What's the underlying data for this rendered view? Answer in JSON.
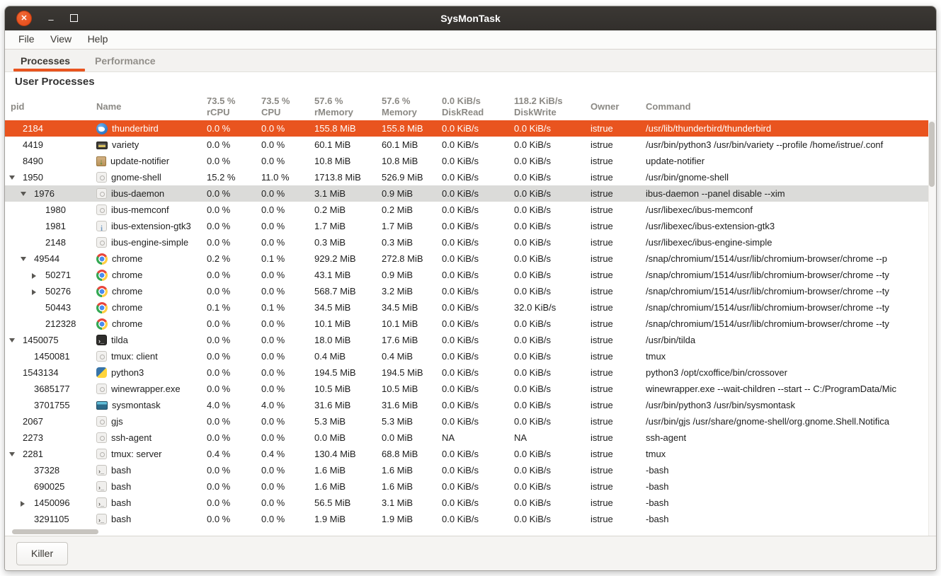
{
  "window": {
    "title": "SysMonTask"
  },
  "window_controls": {
    "close": "✕",
    "minimize": "–",
    "maximize": "□"
  },
  "menu": {
    "items": [
      "File",
      "View",
      "Help"
    ]
  },
  "tabs": [
    {
      "label": "Processes",
      "active": true
    },
    {
      "label": "Performance",
      "active": false
    }
  ],
  "section_title": "User Processes",
  "footer": {
    "killer_label": "Killer"
  },
  "colors": {
    "accent": "#E9541F",
    "selected_row_bg": "#E9541F",
    "highlighted_row_bg": "#dbdbd9",
    "titlebar_bg": "#353230",
    "header_text": "#8b8984"
  },
  "table": {
    "columns": [
      {
        "id": "pid",
        "label1": "pid",
        "label2": ""
      },
      {
        "id": "name",
        "label1": "Name",
        "label2": ""
      },
      {
        "id": "rcpu",
        "label1": "73.5 %",
        "label2": "rCPU"
      },
      {
        "id": "cpu",
        "label1": "73.5 %",
        "label2": "CPU"
      },
      {
        "id": "rmem",
        "label1": "57.6 %",
        "label2": "rMemory"
      },
      {
        "id": "mem",
        "label1": "57.6 %",
        "label2": "Memory"
      },
      {
        "id": "dread",
        "label1": "0.0 KiB/s",
        "label2": "DiskRead"
      },
      {
        "id": "dwrite",
        "label1": "118.2 KiB/s",
        "label2": "DiskWrite"
      },
      {
        "id": "owner",
        "label1": "Owner",
        "label2": ""
      },
      {
        "id": "cmd",
        "label1": "Command",
        "label2": ""
      }
    ],
    "rows": [
      {
        "pid": "2184",
        "depth": 0,
        "expander": null,
        "icon": "thunderbird",
        "name": "thunderbird",
        "rcpu": "0.0 %",
        "cpu": "0.0 %",
        "rmem": "155.8 MiB",
        "mem": "155.8 MiB",
        "dread": "0.0 KiB/s",
        "dwrite": "0.0 KiB/s",
        "owner": "istrue",
        "cmd": "/usr/lib/thunderbird/thunderbird",
        "state": "selected"
      },
      {
        "pid": "4419",
        "depth": 0,
        "expander": null,
        "icon": "variety",
        "name": "variety",
        "rcpu": "0.0 %",
        "cpu": "0.0 %",
        "rmem": "60.1 MiB",
        "mem": "60.1 MiB",
        "dread": "0.0 KiB/s",
        "dwrite": "0.0 KiB/s",
        "owner": "istrue",
        "cmd": "/usr/bin/python3 /usr/bin/variety --profile /home/istrue/.conf",
        "state": null
      },
      {
        "pid": "8490",
        "depth": 0,
        "expander": null,
        "icon": "update",
        "name": "update-notifier",
        "rcpu": "0.0 %",
        "cpu": "0.0 %",
        "rmem": "10.8 MiB",
        "mem": "10.8 MiB",
        "dread": "0.0 KiB/s",
        "dwrite": "0.0 KiB/s",
        "owner": "istrue",
        "cmd": "update-notifier",
        "state": null
      },
      {
        "pid": "1950",
        "depth": 0,
        "expander": "open",
        "icon": "gear",
        "name": "gnome-shell",
        "rcpu": "15.2 %",
        "cpu": "11.0 %",
        "rmem": "1713.8 MiB",
        "mem": "526.9 MiB",
        "dread": "0.0 KiB/s",
        "dwrite": "0.0 KiB/s",
        "owner": "istrue",
        "cmd": "/usr/bin/gnome-shell",
        "state": null
      },
      {
        "pid": "1976",
        "depth": 1,
        "expander": "open",
        "icon": "gear",
        "name": "ibus-daemon",
        "rcpu": "0.0 %",
        "cpu": "0.0 %",
        "rmem": "3.1 MiB",
        "mem": "0.9 MiB",
        "dread": "0.0 KiB/s",
        "dwrite": "0.0 KiB/s",
        "owner": "istrue",
        "cmd": "ibus-daemon --panel disable --xim",
        "state": "highlighted"
      },
      {
        "pid": "1980",
        "depth": 2,
        "expander": null,
        "icon": "gear",
        "name": "ibus-memconf",
        "rcpu": "0.0 %",
        "cpu": "0.0 %",
        "rmem": "0.2 MiB",
        "mem": "0.2 MiB",
        "dread": "0.0 KiB/s",
        "dwrite": "0.0 KiB/s",
        "owner": "istrue",
        "cmd": "/usr/libexec/ibus-memconf",
        "state": null
      },
      {
        "pid": "1981",
        "depth": 2,
        "expander": null,
        "icon": "info",
        "name": "ibus-extension-gtk3",
        "rcpu": "0.0 %",
        "cpu": "0.0 %",
        "rmem": "1.7 MiB",
        "mem": "1.7 MiB",
        "dread": "0.0 KiB/s",
        "dwrite": "0.0 KiB/s",
        "owner": "istrue",
        "cmd": "/usr/libexec/ibus-extension-gtk3",
        "state": null
      },
      {
        "pid": "2148",
        "depth": 2,
        "expander": null,
        "icon": "gear",
        "name": "ibus-engine-simple",
        "rcpu": "0.0 %",
        "cpu": "0.0 %",
        "rmem": "0.3 MiB",
        "mem": "0.3 MiB",
        "dread": "0.0 KiB/s",
        "dwrite": "0.0 KiB/s",
        "owner": "istrue",
        "cmd": "/usr/libexec/ibus-engine-simple",
        "state": null
      },
      {
        "pid": "49544",
        "depth": 1,
        "expander": "open",
        "icon": "chrome",
        "name": "chrome",
        "rcpu": "0.2 %",
        "cpu": "0.1 %",
        "rmem": "929.2 MiB",
        "mem": "272.8 MiB",
        "dread": "0.0 KiB/s",
        "dwrite": "0.0 KiB/s",
        "owner": "istrue",
        "cmd": "/snap/chromium/1514/usr/lib/chromium-browser/chrome --p",
        "state": null
      },
      {
        "pid": "50271",
        "depth": 2,
        "expander": "closed",
        "icon": "chrome",
        "name": "chrome",
        "rcpu": "0.0 %",
        "cpu": "0.0 %",
        "rmem": "43.1 MiB",
        "mem": "0.9 MiB",
        "dread": "0.0 KiB/s",
        "dwrite": "0.0 KiB/s",
        "owner": "istrue",
        "cmd": "/snap/chromium/1514/usr/lib/chromium-browser/chrome --ty",
        "state": null
      },
      {
        "pid": "50276",
        "depth": 2,
        "expander": "closed",
        "icon": "chrome",
        "name": "chrome",
        "rcpu": "0.0 %",
        "cpu": "0.0 %",
        "rmem": "568.7 MiB",
        "mem": "3.2 MiB",
        "dread": "0.0 KiB/s",
        "dwrite": "0.0 KiB/s",
        "owner": "istrue",
        "cmd": "/snap/chromium/1514/usr/lib/chromium-browser/chrome --ty",
        "state": null
      },
      {
        "pid": "50443",
        "depth": 2,
        "expander": null,
        "icon": "chrome",
        "name": "chrome",
        "rcpu": "0.1 %",
        "cpu": "0.1 %",
        "rmem": "34.5 MiB",
        "mem": "34.5 MiB",
        "dread": "0.0 KiB/s",
        "dwrite": "32.0 KiB/s",
        "owner": "istrue",
        "cmd": "/snap/chromium/1514/usr/lib/chromium-browser/chrome --ty",
        "state": null
      },
      {
        "pid": "212328",
        "depth": 2,
        "expander": null,
        "icon": "chrome",
        "name": "chrome",
        "rcpu": "0.0 %",
        "cpu": "0.0 %",
        "rmem": "10.1 MiB",
        "mem": "10.1 MiB",
        "dread": "0.0 KiB/s",
        "dwrite": "0.0 KiB/s",
        "owner": "istrue",
        "cmd": "/snap/chromium/1514/usr/lib/chromium-browser/chrome --ty",
        "state": null
      },
      {
        "pid": "1450075",
        "depth": 0,
        "expander": "open",
        "icon": "tilda",
        "name": "tilda",
        "rcpu": "0.0 %",
        "cpu": "0.0 %",
        "rmem": "18.0 MiB",
        "mem": "17.6 MiB",
        "dread": "0.0 KiB/s",
        "dwrite": "0.0 KiB/s",
        "owner": "istrue",
        "cmd": "/usr/bin/tilda",
        "state": null
      },
      {
        "pid": "1450081",
        "depth": 1,
        "expander": null,
        "icon": "gear",
        "name": "tmux: client",
        "rcpu": "0.0 %",
        "cpu": "0.0 %",
        "rmem": "0.4 MiB",
        "mem": "0.4 MiB",
        "dread": "0.0 KiB/s",
        "dwrite": "0.0 KiB/s",
        "owner": "istrue",
        "cmd": "tmux",
        "state": null
      },
      {
        "pid": "1543134",
        "depth": 0,
        "expander": null,
        "icon": "python",
        "name": "python3",
        "rcpu": "0.0 %",
        "cpu": "0.0 %",
        "rmem": "194.5 MiB",
        "mem": "194.5 MiB",
        "dread": "0.0 KiB/s",
        "dwrite": "0.0 KiB/s",
        "owner": "istrue",
        "cmd": "python3 /opt/cxoffice/bin/crossover",
        "state": null
      },
      {
        "pid": "3685177",
        "depth": 1,
        "expander": null,
        "icon": "gear",
        "name": "winewrapper.exe",
        "rcpu": "0.0 %",
        "cpu": "0.0 %",
        "rmem": "10.5 MiB",
        "mem": "10.5 MiB",
        "dread": "0.0 KiB/s",
        "dwrite": "0.0 KiB/s",
        "owner": "istrue",
        "cmd": "winewrapper.exe --wait-children --start -- C:/ProgramData/Mic",
        "state": null
      },
      {
        "pid": "3701755",
        "depth": 1,
        "expander": null,
        "icon": "sysmontask",
        "name": "sysmontask",
        "rcpu": "4.0 %",
        "cpu": "4.0 %",
        "rmem": "31.6 MiB",
        "mem": "31.6 MiB",
        "dread": "0.0 KiB/s",
        "dwrite": "0.0 KiB/s",
        "owner": "istrue",
        "cmd": "/usr/bin/python3 /usr/bin/sysmontask",
        "state": null
      },
      {
        "pid": "2067",
        "depth": 0,
        "expander": null,
        "icon": "gear",
        "name": "gjs",
        "rcpu": "0.0 %",
        "cpu": "0.0 %",
        "rmem": "5.3 MiB",
        "mem": "5.3 MiB",
        "dread": "0.0 KiB/s",
        "dwrite": "0.0 KiB/s",
        "owner": "istrue",
        "cmd": "/usr/bin/gjs /usr/share/gnome-shell/org.gnome.Shell.Notifica",
        "state": null
      },
      {
        "pid": "2273",
        "depth": 0,
        "expander": null,
        "icon": "gear",
        "name": "ssh-agent",
        "rcpu": "0.0 %",
        "cpu": "0.0 %",
        "rmem": "0.0 MiB",
        "mem": "0.0 MiB",
        "dread": "NA",
        "dwrite": "NA",
        "owner": "istrue",
        "cmd": "ssh-agent",
        "state": null
      },
      {
        "pid": "2281",
        "depth": 0,
        "expander": "open",
        "icon": "gear",
        "name": "tmux: server",
        "rcpu": "0.4 %",
        "cpu": "0.4 %",
        "rmem": "130.4 MiB",
        "mem": "68.8 MiB",
        "dread": "0.0 KiB/s",
        "dwrite": "0.0 KiB/s",
        "owner": "istrue",
        "cmd": "tmux",
        "state": null
      },
      {
        "pid": "37328",
        "depth": 1,
        "expander": null,
        "icon": "bash",
        "name": "bash",
        "rcpu": "0.0 %",
        "cpu": "0.0 %",
        "rmem": "1.6 MiB",
        "mem": "1.6 MiB",
        "dread": "0.0 KiB/s",
        "dwrite": "0.0 KiB/s",
        "owner": "istrue",
        "cmd": "-bash",
        "state": null
      },
      {
        "pid": "690025",
        "depth": 1,
        "expander": null,
        "icon": "bash",
        "name": "bash",
        "rcpu": "0.0 %",
        "cpu": "0.0 %",
        "rmem": "1.6 MiB",
        "mem": "1.6 MiB",
        "dread": "0.0 KiB/s",
        "dwrite": "0.0 KiB/s",
        "owner": "istrue",
        "cmd": "-bash",
        "state": null
      },
      {
        "pid": "1450096",
        "depth": 1,
        "expander": "closed",
        "icon": "bash",
        "name": "bash",
        "rcpu": "0.0 %",
        "cpu": "0.0 %",
        "rmem": "56.5 MiB",
        "mem": "3.1 MiB",
        "dread": "0.0 KiB/s",
        "dwrite": "0.0 KiB/s",
        "owner": "istrue",
        "cmd": "-bash",
        "state": null
      },
      {
        "pid": "3291105",
        "depth": 1,
        "expander": null,
        "icon": "bash",
        "name": "bash",
        "rcpu": "0.0 %",
        "cpu": "0.0 %",
        "rmem": "1.9 MiB",
        "mem": "1.9 MiB",
        "dread": "0.0 KiB/s",
        "dwrite": "0.0 KiB/s",
        "owner": "istrue",
        "cmd": "-bash",
        "state": null
      }
    ]
  }
}
